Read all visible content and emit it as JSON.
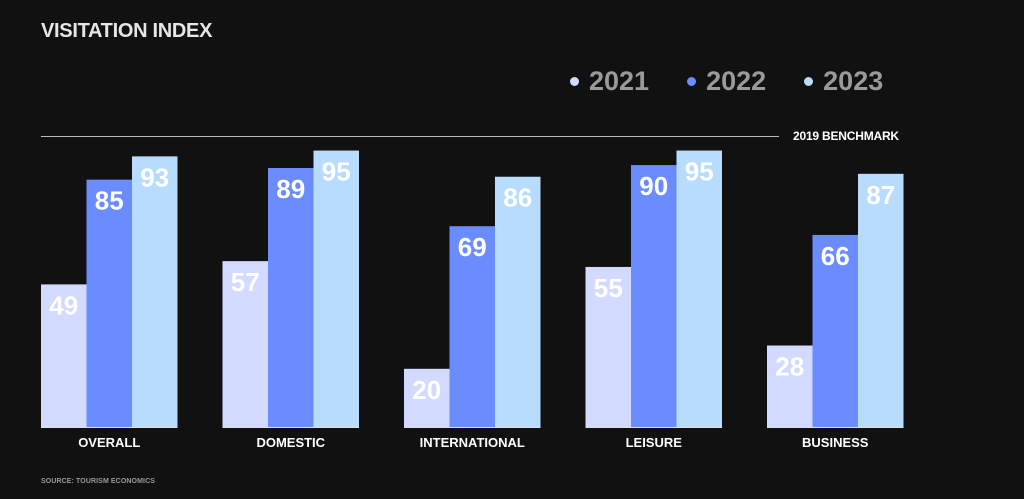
{
  "chart_data": {
    "type": "bar",
    "title": "VISITATION INDEX",
    "categories": [
      "OVERALL",
      "DOMESTIC",
      "INTERNATIONAL",
      "LEISURE",
      "BUSINESS"
    ],
    "series": [
      {
        "name": "2021",
        "color": "#d3daff",
        "values": [
          49,
          57,
          20,
          55,
          28
        ]
      },
      {
        "name": "2022",
        "color": "#6b8cff",
        "values": [
          85,
          89,
          69,
          90,
          66
        ]
      },
      {
        "name": "2023",
        "color": "#b7dcfd",
        "values": [
          93,
          95,
          86,
          95,
          87
        ]
      }
    ],
    "reference_line": {
      "label": "2019 BENCHMARK"
    },
    "legend": "top-right",
    "source": "SOURCE: TOURISM ECONOMICS"
  }
}
